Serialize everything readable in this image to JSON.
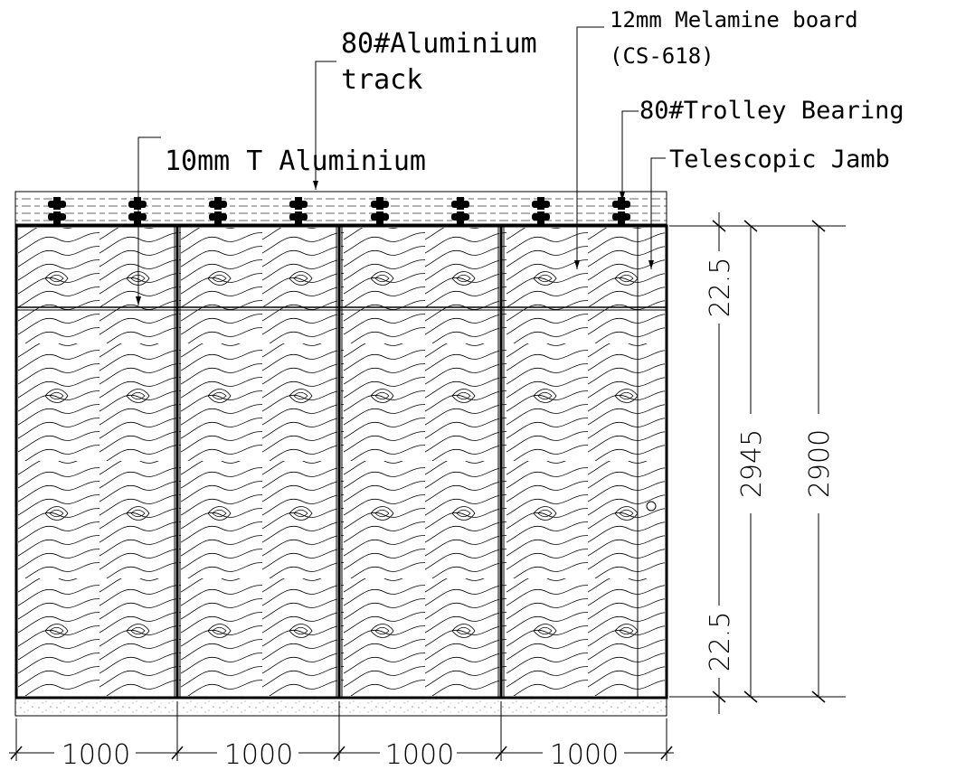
{
  "labels": {
    "melamine_line1": "12mm Melamine board",
    "melamine_line2": "(CS-618)",
    "track_line1": "80#Aluminium",
    "track_line2": "track",
    "trolley": "80#Trolley Bearing",
    "t_aluminium": "10mm T Aluminium",
    "jamb": "Telescopic Jamb"
  },
  "dimensions": {
    "top_offset": "22.5",
    "overall_height": "2945",
    "panel_height": "2900",
    "bottom_offset": "22.5",
    "panel_widths": [
      "1000",
      "1000",
      "1000",
      "1000"
    ]
  },
  "panel_count": 4,
  "trolley_count": 8
}
